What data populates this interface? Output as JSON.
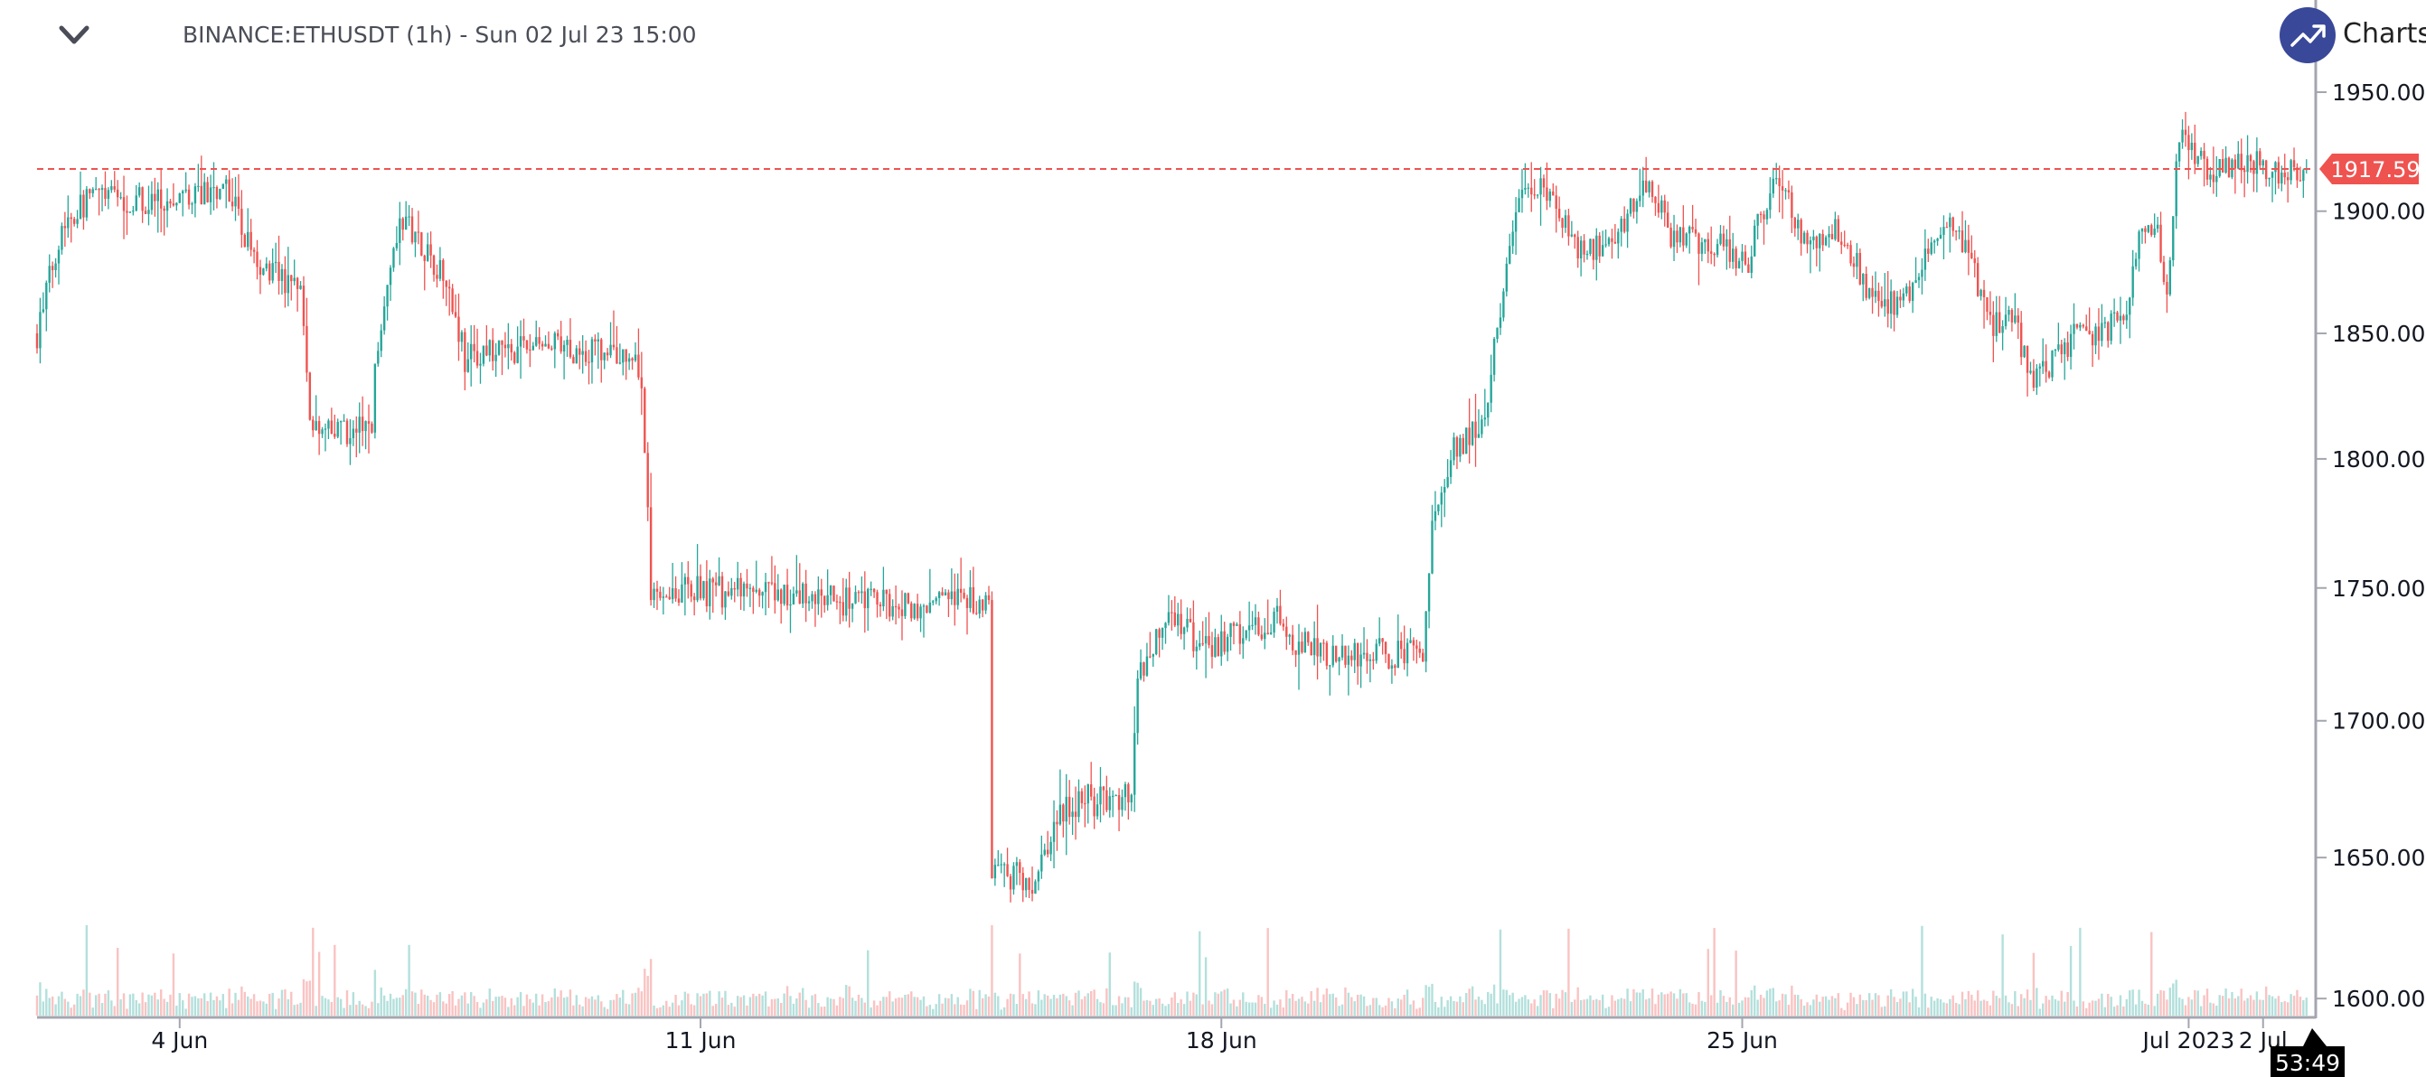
{
  "header": {
    "title": "BINANCE:ETHUSDT (1h) - Sun 02 Jul 23 15:00",
    "logo_text": "Charts p"
  },
  "countdown": "53:49",
  "last_price_label": "1917.59",
  "colors": {
    "up": "#26a69a",
    "down": "#ef5350",
    "last_line": "#ef5350",
    "logo": "#3a4899"
  },
  "chart_data": {
    "type": "candlestick",
    "title": "BINANCE:ETHUSDT (1h)",
    "scale": "log",
    "ylim": [
      1600,
      1950
    ],
    "total_candles": 733,
    "last_price": 1917.59,
    "y_ticks": [
      "1950.00",
      "1900.00",
      "1850.00",
      "1800.00",
      "1750.00",
      "1700.00",
      "1650.00",
      "1600.00"
    ],
    "y_tick_values": [
      1950,
      1900,
      1850,
      1800,
      1750,
      1700,
      1650,
      1600
    ],
    "x_ticks": [
      {
        "label": "4 Jun",
        "hour": 46
      },
      {
        "label": "11 Jun",
        "hour": 214
      },
      {
        "label": "18 Jun",
        "hour": 382
      },
      {
        "label": "25 Jun",
        "hour": 550
      },
      {
        "label": "Jul 2023",
        "hour": 694
      },
      {
        "label": "2 Jul",
        "hour": 718
      }
    ],
    "close_anchors_hour_price": [
      [
        0,
        1850
      ],
      [
        8,
        1895
      ],
      [
        18,
        1907
      ],
      [
        40,
        1903
      ],
      [
        61,
        1910
      ],
      [
        63,
        1905
      ],
      [
        70,
        1880
      ],
      [
        85,
        1868
      ],
      [
        88,
        1818
      ],
      [
        90,
        1810
      ],
      [
        108,
        1812
      ],
      [
        109,
        1840
      ],
      [
        115,
        1890
      ],
      [
        120,
        1895
      ],
      [
        133,
        1870
      ],
      [
        138,
        1840
      ],
      [
        160,
        1845
      ],
      [
        180,
        1843
      ],
      [
        193,
        1840
      ],
      [
        195,
        1830
      ],
      [
        198,
        1750
      ],
      [
        230,
        1748
      ],
      [
        260,
        1745
      ],
      [
        290,
        1744
      ],
      [
        307,
        1745
      ],
      [
        308,
        1648
      ],
      [
        320,
        1640
      ],
      [
        332,
        1670
      ],
      [
        353,
        1672
      ],
      [
        355,
        1718
      ],
      [
        365,
        1740
      ],
      [
        377,
        1728
      ],
      [
        402,
        1738
      ],
      [
        407,
        1728
      ],
      [
        422,
        1725
      ],
      [
        447,
        1725
      ],
      [
        450,
        1775
      ],
      [
        457,
        1805
      ],
      [
        467,
        1815
      ],
      [
        472,
        1860
      ],
      [
        480,
        1915
      ],
      [
        487,
        1905
      ],
      [
        497,
        1885
      ],
      [
        507,
        1884
      ],
      [
        520,
        1915
      ],
      [
        527,
        1890
      ],
      [
        537,
        1888
      ],
      [
        552,
        1880
      ],
      [
        560,
        1915
      ],
      [
        570,
        1890
      ],
      [
        582,
        1892
      ],
      [
        592,
        1862
      ],
      [
        602,
        1862
      ],
      [
        615,
        1893
      ],
      [
        622,
        1888
      ],
      [
        630,
        1853
      ],
      [
        637,
        1856
      ],
      [
        645,
        1830
      ],
      [
        657,
        1848
      ],
      [
        667,
        1853
      ],
      [
        674,
        1853
      ],
      [
        677,
        1885
      ],
      [
        684,
        1895
      ],
      [
        687,
        1860
      ],
      [
        690,
        1923
      ],
      [
        692,
        1935
      ],
      [
        697,
        1922
      ],
      [
        702,
        1915
      ],
      [
        712,
        1922
      ],
      [
        722,
        1915
      ],
      [
        732,
        1917.59
      ]
    ]
  }
}
